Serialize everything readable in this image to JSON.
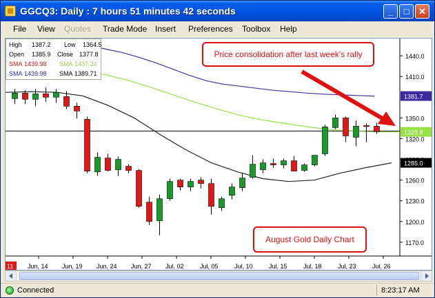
{
  "window": {
    "title": "GGCQ3: Daily : 7 hours 51 minutes 42 seconds"
  },
  "menu": [
    "File",
    "View",
    "Quotes",
    "Trade Mode",
    "Insert",
    "Preferences",
    "Toolbox",
    "Help"
  ],
  "menu_disabled": [
    "Quotes"
  ],
  "legend": {
    "high_label": "High",
    "high_value": "1387.2",
    "low_label": "Low",
    "low_value": "1364.5",
    "open_label": "Open",
    "open_value": "1385.9",
    "close_label": "Close",
    "close_value": "1377.8",
    "sma1_label": "SMA",
    "sma1_value": "1439.98",
    "sma2_label": "SMA",
    "sma2_value": "1437.24",
    "sma3_label": "SMA",
    "sma3_value": "1439.98",
    "sma4_label": "SMA",
    "sma4_value": "1389.71"
  },
  "annotations": {
    "callout_top": "Price consolidation after last week's rally",
    "callout_bottom": "August Gold Daily Chart"
  },
  "status": {
    "connection": "Connected",
    "time": "8:23:17 AM"
  },
  "colors": {
    "up": "#1a9a2a",
    "down": "#e01818",
    "sma_blue": "#4a2aa8",
    "sma_green": "#98e048",
    "sma_black": "#202020",
    "callout": "#e01010"
  },
  "chart_data": {
    "type": "candlestick",
    "y_ticks": [
      "1440.0",
      "1410.0",
      "1350.0",
      "1320.0",
      "1290.0",
      "1260.0",
      "1230.0",
      "1200.0",
      "1170.0"
    ],
    "y_range": [
      1150,
      1465
    ],
    "x_tick_labels": [
      "11",
      "Jun, 14",
      "Jun, 19",
      "Jun, 24",
      "Jun, 27",
      "Jul, 02",
      "Jul, 05",
      "Jul, 10",
      "Jul, 15",
      "Jul, 18",
      "Jul, 23",
      "Jul, 26"
    ],
    "price_markers": [
      {
        "label": "1381.7",
        "value": 1381.7,
        "color": "#3a2aa0"
      },
      {
        "label": "1329.8",
        "value": 1329.8,
        "color": "#98e048"
      },
      {
        "label": "1285.0",
        "value": 1285.0,
        "color": "#000000"
      }
    ],
    "horizontal_line": 1331,
    "candles": [
      {
        "o": 1378,
        "h": 1392,
        "l": 1370,
        "c": 1386
      },
      {
        "o": 1386,
        "h": 1390,
        "l": 1370,
        "c": 1377
      },
      {
        "o": 1377,
        "h": 1392,
        "l": 1367,
        "c": 1385
      },
      {
        "o": 1385,
        "h": 1394,
        "l": 1373,
        "c": 1380
      },
      {
        "o": 1380,
        "h": 1392,
        "l": 1372,
        "c": 1387
      },
      {
        "o": 1381,
        "h": 1389,
        "l": 1363,
        "c": 1367
      },
      {
        "o": 1367,
        "h": 1372,
        "l": 1349,
        "c": 1360
      },
      {
        "o": 1348,
        "h": 1352,
        "l": 1270,
        "c": 1273
      },
      {
        "o": 1272,
        "h": 1300,
        "l": 1266,
        "c": 1293
      },
      {
        "o": 1292,
        "h": 1298,
        "l": 1273,
        "c": 1274
      },
      {
        "o": 1275,
        "h": 1294,
        "l": 1266,
        "c": 1290
      },
      {
        "o": 1280,
        "h": 1283,
        "l": 1270,
        "c": 1274
      },
      {
        "o": 1274,
        "h": 1276,
        "l": 1220,
        "c": 1222
      },
      {
        "o": 1228,
        "h": 1236,
        "l": 1195,
        "c": 1200
      },
      {
        "o": 1201,
        "h": 1239,
        "l": 1180,
        "c": 1233
      },
      {
        "o": 1233,
        "h": 1262,
        "l": 1230,
        "c": 1258
      },
      {
        "o": 1260,
        "h": 1262,
        "l": 1245,
        "c": 1250
      },
      {
        "o": 1250,
        "h": 1262,
        "l": 1244,
        "c": 1258
      },
      {
        "o": 1260,
        "h": 1264,
        "l": 1248,
        "c": 1255
      },
      {
        "o": 1255,
        "h": 1262,
        "l": 1210,
        "c": 1222
      },
      {
        "o": 1220,
        "h": 1236,
        "l": 1215,
        "c": 1233
      },
      {
        "o": 1238,
        "h": 1255,
        "l": 1232,
        "c": 1250
      },
      {
        "o": 1249,
        "h": 1270,
        "l": 1244,
        "c": 1263
      },
      {
        "o": 1264,
        "h": 1296,
        "l": 1262,
        "c": 1283
      },
      {
        "o": 1275,
        "h": 1290,
        "l": 1270,
        "c": 1285
      },
      {
        "o": 1284,
        "h": 1291,
        "l": 1278,
        "c": 1282
      },
      {
        "o": 1282,
        "h": 1291,
        "l": 1277,
        "c": 1288
      },
      {
        "o": 1288,
        "h": 1295,
        "l": 1273,
        "c": 1273
      },
      {
        "o": 1274,
        "h": 1284,
        "l": 1272,
        "c": 1282
      },
      {
        "o": 1282,
        "h": 1296,
        "l": 1280,
        "c": 1296
      },
      {
        "o": 1298,
        "h": 1340,
        "l": 1295,
        "c": 1337
      },
      {
        "o": 1336,
        "h": 1355,
        "l": 1334,
        "c": 1350
      },
      {
        "o": 1350,
        "h": 1352,
        "l": 1315,
        "c": 1324
      },
      {
        "o": 1322,
        "h": 1346,
        "l": 1309,
        "c": 1338
      },
      {
        "o": 1339,
        "h": 1342,
        "l": 1315,
        "c": 1338
      },
      {
        "o": 1338,
        "h": 1343,
        "l": 1327,
        "c": 1330
      }
    ],
    "sma_blue": [
      1458,
      1455,
      1450,
      1445,
      1438,
      1430,
      1421,
      1412,
      1404,
      1399,
      1396,
      1393,
      1390,
      1388,
      1386,
      1384.5,
      1383.5,
      1382.5,
      1381.7
    ],
    "sma_green": [
      1418,
      1413,
      1405,
      1395,
      1384,
      1373,
      1363,
      1354,
      1347,
      1342,
      1337,
      1333,
      1331,
      1329.8,
      1329.8
    ],
    "sma_black": [
      1387,
      1388,
      1387,
      1382,
      1368,
      1350,
      1326,
      1304,
      1285,
      1272,
      1262,
      1258,
      1260,
      1270,
      1278,
      1285
    ]
  }
}
